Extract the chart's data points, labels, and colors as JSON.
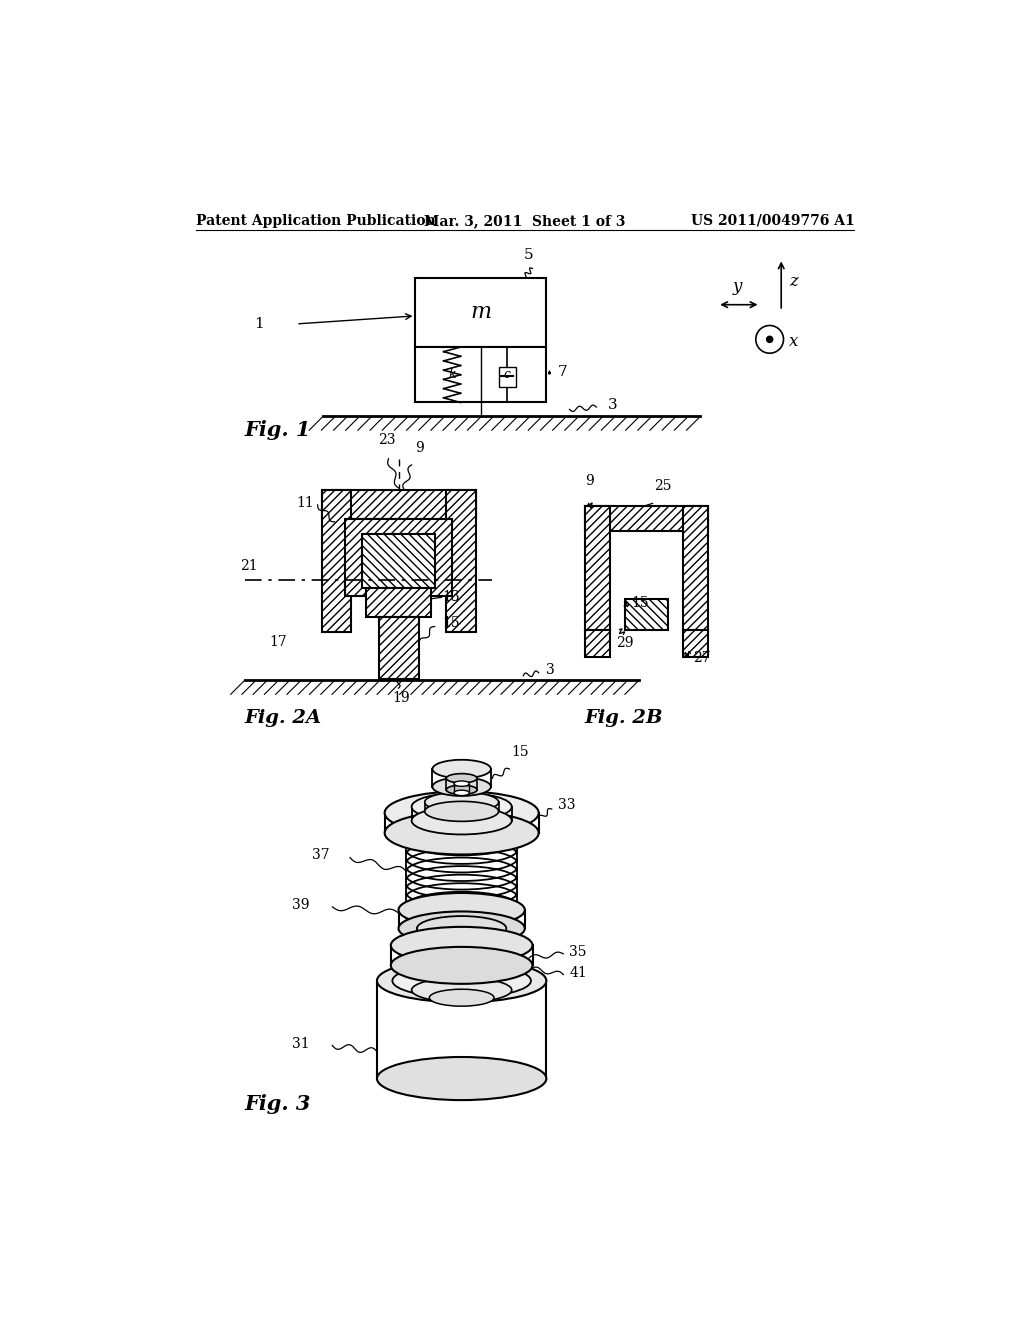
{
  "header_left": "Patent Application Publication",
  "header_mid": "Mar. 3, 2011  Sheet 1 of 3",
  "header_right": "US 2011/0049776 A1",
  "bg_color": "#ffffff",
  "fig1_label": "Fig. 1",
  "fig2a_label": "Fig. 2A",
  "fig2b_label": "Fig. 2B",
  "fig3_label": "Fig. 3"
}
